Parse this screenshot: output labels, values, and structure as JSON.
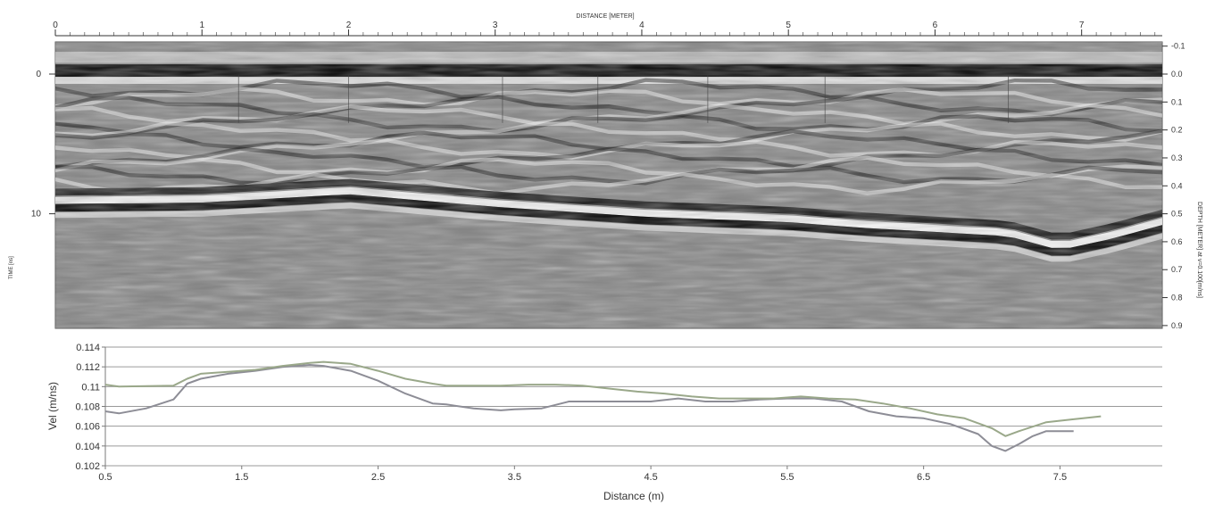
{
  "colors": {
    "series_gray": "#8d8d96",
    "series_green": "#9aa88a",
    "grid": "#9a9a9a",
    "radar_dark": "#000000",
    "radar_light": "#ffffff",
    "radar_mid": "#808080"
  },
  "chart_data": [
    {
      "type": "heatmap",
      "title": "",
      "xlabel": "DISTANCE [METER]",
      "ylabel_left": "TIME [ns]",
      "ylabel_right": "DEPTH [METER] at v=0.100[m/ns]",
      "x_ticks": [
        "0",
        "1",
        "2",
        "3",
        "4",
        "5",
        "6",
        "7"
      ],
      "xlim": [
        0,
        7.55
      ],
      "time_ticks": [
        "0",
        "10"
      ],
      "time_range_ns": [
        -2.3,
        18.2
      ],
      "depth_ticks": [
        "-0.1",
        "0.0",
        "0.1",
        "0.2",
        "0.3",
        "0.4",
        "0.5",
        "0.6",
        "0.7",
        "0.8",
        "0.9"
      ],
      "depth_range_m": [
        -0.115,
        0.91
      ],
      "reflectors": [
        {
          "name": "surface",
          "points": [
            [
              0,
              -0.3
            ],
            [
              7.55,
              -0.3
            ]
          ]
        },
        {
          "name": "lower",
          "points": [
            [
              0,
              9.3
            ],
            [
              1,
              9.2
            ],
            [
              2,
              8.6
            ],
            [
              3,
              9.5
            ],
            [
              4,
              10.2
            ],
            [
              5,
              10.6
            ],
            [
              5.5,
              11.0
            ],
            [
              6,
              11.3
            ],
            [
              6.5,
              11.6
            ],
            [
              6.85,
              12.6
            ],
            [
              7.2,
              11.8
            ],
            [
              7.55,
              10.8
            ]
          ]
        }
      ],
      "vertical_markers": [
        1.25,
        2.0,
        3.05,
        3.7,
        4.45,
        5.25,
        6.5
      ]
    },
    {
      "type": "line",
      "title": "",
      "xlabel": "Distance  (m)",
      "ylabel": "Vel  (m/ns)",
      "x_ticks": [
        "0.5",
        "1.5",
        "2.5",
        "3.5",
        "4.5",
        "5.5",
        "6.5",
        "7.5"
      ],
      "y_ticks": [
        "0.102",
        "0.104",
        "0.106",
        "0.108",
        "0.11",
        "0.112",
        "0.114"
      ],
      "xlim": [
        0.5,
        8.25
      ],
      "ylim": [
        0.102,
        0.114
      ],
      "grid": "horizontal",
      "series": [
        {
          "color": "#8d8d96",
          "x": [
            0.5,
            0.6,
            0.8,
            1.0,
            1.1,
            1.2,
            1.4,
            1.6,
            1.8,
            2.0,
            2.1,
            2.3,
            2.5,
            2.7,
            2.9,
            3.0,
            3.2,
            3.4,
            3.5,
            3.7,
            3.9,
            4.0,
            4.3,
            4.5,
            4.7,
            4.9,
            5.1,
            5.3,
            5.5,
            5.7,
            5.9,
            6.1,
            6.3,
            6.5,
            6.7,
            6.9,
            7.0,
            7.1,
            7.2,
            7.3,
            7.4,
            7.6
          ],
          "y": [
            0.1075,
            0.1073,
            0.1078,
            0.1087,
            0.1103,
            0.1108,
            0.1113,
            0.1116,
            0.112,
            0.1122,
            0.1121,
            0.1116,
            0.1106,
            0.1093,
            0.1083,
            0.1082,
            0.1078,
            0.1076,
            0.1077,
            0.1078,
            0.1085,
            0.1085,
            0.1085,
            0.1085,
            0.1088,
            0.1085,
            0.1085,
            0.1087,
            0.1088,
            0.1088,
            0.1085,
            0.1075,
            0.107,
            0.1068,
            0.1062,
            0.1052,
            0.104,
            0.1035,
            0.1042,
            0.105,
            0.1055,
            0.1055
          ]
        },
        {
          "color": "#9aa88a",
          "x": [
            0.5,
            0.6,
            1.0,
            1.1,
            1.2,
            1.4,
            1.6,
            1.8,
            2.0,
            2.1,
            2.3,
            2.5,
            2.7,
            2.9,
            3.0,
            3.2,
            3.4,
            3.6,
            3.8,
            4.0,
            4.2,
            4.4,
            4.6,
            4.8,
            5.0,
            5.2,
            5.4,
            5.6,
            5.8,
            6.0,
            6.2,
            6.4,
            6.6,
            6.8,
            7.0,
            7.1,
            7.2,
            7.4,
            7.6,
            7.8
          ],
          "y": [
            0.1102,
            0.11,
            0.1101,
            0.1108,
            0.1113,
            0.1115,
            0.1117,
            0.1121,
            0.1124,
            0.1125,
            0.1123,
            0.1116,
            0.1108,
            0.1103,
            0.1101,
            0.1101,
            0.1101,
            0.1102,
            0.1102,
            0.1101,
            0.1098,
            0.1095,
            0.1093,
            0.109,
            0.1088,
            0.1088,
            0.1088,
            0.109,
            0.1088,
            0.1087,
            0.1083,
            0.1078,
            0.1072,
            0.1068,
            0.1058,
            0.105,
            0.1055,
            0.1064,
            0.1067,
            0.107
          ]
        }
      ]
    }
  ]
}
